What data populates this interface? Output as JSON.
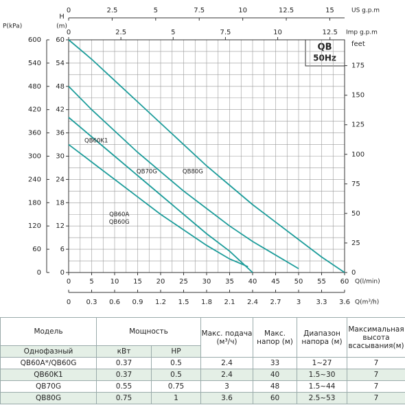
{
  "chart_data": {
    "type": "line",
    "title": "QB",
    "subtitle": "50Hz",
    "x_label": "Q(l/min)",
    "y_label": "H",
    "y_unit": "(m)",
    "xlim": [
      0,
      60
    ],
    "xticks": [
      0,
      5,
      10,
      15,
      20,
      25,
      30,
      35,
      40,
      45,
      50,
      55,
      60
    ],
    "ylim": [
      0,
      60
    ],
    "yticks": [
      0,
      6,
      12,
      18,
      24,
      30,
      36,
      42,
      48,
      54,
      60
    ],
    "grid": true,
    "p_axis": {
      "label": "P(kPa)",
      "lim": [
        0,
        600
      ],
      "ticks": [
        0,
        60,
        120,
        180,
        240,
        300,
        360,
        420,
        480,
        540,
        600
      ]
    },
    "feet_axis": {
      "label": "feet",
      "lim": [
        0,
        196.85
      ],
      "ticks": [
        0,
        25,
        50,
        75,
        100,
        125,
        150,
        175
      ]
    },
    "us_axis": {
      "label": "US  g.p.m",
      "lim": [
        0,
        15.85
      ],
      "ticks": [
        0,
        2.5,
        5,
        7.5,
        10,
        12.5,
        15
      ]
    },
    "imp_axis": {
      "label": "Imp  g.p.m",
      "lim": [
        0,
        13.2
      ],
      "ticks": [
        0,
        2.5,
        5,
        7.5,
        10,
        12.5
      ]
    },
    "m3h_axis": {
      "label": "Q(m³/h)",
      "lim": [
        0,
        3.6
      ],
      "ticks": [
        0,
        0.3,
        0.6,
        0.9,
        1.2,
        1.5,
        1.8,
        2.1,
        2.4,
        2.7,
        3,
        3.3,
        3.6
      ]
    },
    "series": [
      {
        "labels": [
          "QB80G"
        ],
        "color": "#1b9c9a",
        "x": [
          0,
          5,
          10,
          15,
          20,
          25,
          30,
          35,
          40,
          45,
          50,
          55,
          60
        ],
        "values": [
          60,
          55,
          49.5,
          44,
          38.5,
          33,
          27.5,
          22.5,
          17.5,
          13,
          8.5,
          4,
          0
        ]
      },
      {
        "labels": [
          "QB70G"
        ],
        "color": "#1b9c9a",
        "x": [
          0,
          5,
          10,
          15,
          20,
          25,
          30,
          35,
          40,
          45,
          50
        ],
        "values": [
          48,
          42,
          36.5,
          31,
          26,
          21,
          16.5,
          12,
          8,
          4.5,
          1
        ]
      },
      {
        "labels": [
          "QB60K1"
        ],
        "color": "#1b9c9a",
        "x": [
          0,
          5,
          10,
          15,
          20,
          25,
          30,
          35,
          40
        ],
        "values": [
          40,
          35,
          30,
          25,
          20,
          15,
          10,
          5.5,
          0
        ]
      },
      {
        "labels": [
          "QB60A",
          "QB60G"
        ],
        "color": "#1b9c9a",
        "x": [
          0,
          5,
          10,
          15,
          20,
          25,
          30,
          35,
          39
        ],
        "values": [
          33,
          28.5,
          24,
          19.5,
          15,
          11,
          7,
          3.5,
          1.5
        ]
      }
    ]
  },
  "table": {
    "header": [
      "Модель",
      "Мощность",
      "Макс. подача (м³/ч)",
      "Макс. напор (м)",
      "Диапазон напора (м)",
      "Максимальная высота всасывания(м)"
    ],
    "subheader": [
      "Однофазный",
      "кВт",
      "HP"
    ],
    "rows": [
      [
        "QB60A*/QB60G",
        "0.37",
        "0.5",
        "2.4",
        "33",
        "1~27",
        "7"
      ],
      [
        "QB60K1",
        "0.37",
        "0.5",
        "2.4",
        "40",
        "1.5~30",
        "7"
      ],
      [
        "QB70G",
        "0.55",
        "0.75",
        "3",
        "48",
        "1.5~44",
        "7"
      ],
      [
        "QB80G",
        "0.75",
        "1",
        "3.6",
        "60",
        "2.5~53",
        "7"
      ]
    ]
  }
}
